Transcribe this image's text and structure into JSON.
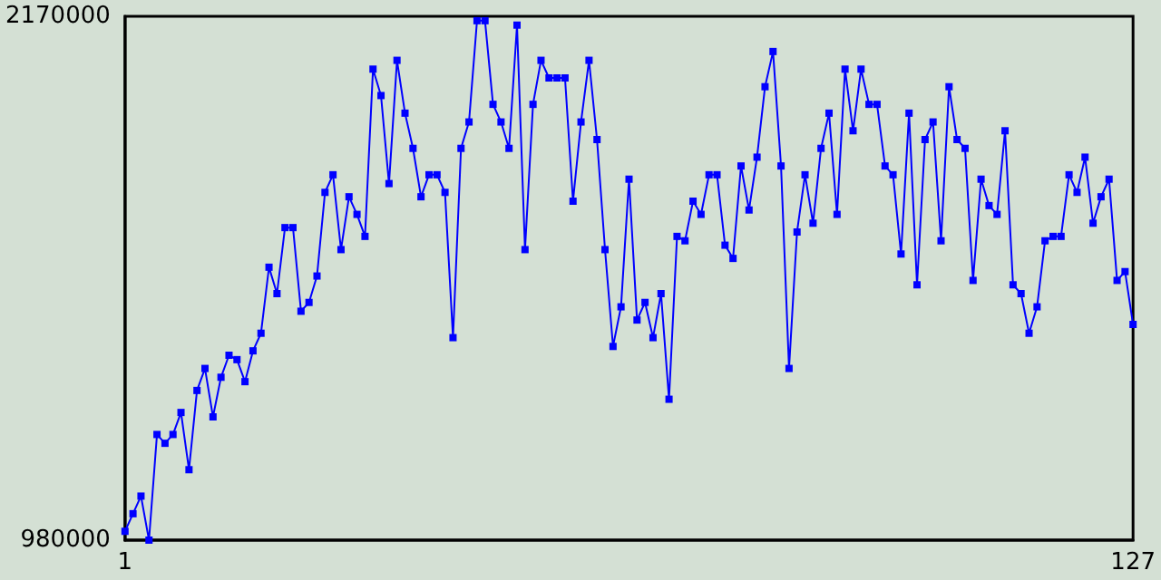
{
  "chart_data": {
    "type": "line",
    "marker": "square",
    "line_style": "solid",
    "xlim": [
      1,
      127
    ],
    "xticks": [
      1,
      127
    ],
    "ylim": [
      980000,
      2170000
    ],
    "yticks": [
      980000,
      2170000
    ],
    "x": [
      1,
      2,
      3,
      4,
      5,
      6,
      7,
      8,
      9,
      10,
      11,
      12,
      13,
      14,
      15,
      16,
      17,
      18,
      19,
      20,
      21,
      22,
      23,
      24,
      25,
      26,
      27,
      28,
      29,
      30,
      31,
      32,
      33,
      34,
      35,
      36,
      37,
      38,
      39,
      40,
      41,
      42,
      43,
      44,
      45,
      46,
      47,
      48,
      49,
      50,
      51,
      52,
      53,
      54,
      55,
      56,
      57,
      58,
      59,
      60,
      61,
      62,
      63,
      64,
      65,
      66,
      67,
      68,
      69,
      70,
      71,
      72,
      73,
      74,
      75,
      76,
      77,
      78,
      79,
      80,
      81,
      82,
      83,
      84,
      85,
      86,
      87,
      88,
      89,
      90,
      91,
      92,
      93,
      94,
      95,
      96,
      97,
      98,
      99,
      100,
      101,
      102,
      103,
      104,
      105,
      106,
      107,
      108,
      109,
      110,
      111,
      112,
      113,
      114,
      115,
      116,
      117,
      118,
      119,
      120,
      121,
      122,
      123,
      124,
      125,
      126,
      127
    ],
    "series": [
      {
        "color": "#0000ff",
        "values": [
          1000000,
          1040000,
          1080000,
          980000,
          1220000,
          1200000,
          1220000,
          1270000,
          1140000,
          1320000,
          1370000,
          1260000,
          1350000,
          1400000,
          1390000,
          1340000,
          1410000,
          1450000,
          1600000,
          1540000,
          1690000,
          1690000,
          1500000,
          1520000,
          1580000,
          1770000,
          1810000,
          1640000,
          1760000,
          1720000,
          1670000,
          2050000,
          1990000,
          1790000,
          2070000,
          1950000,
          1870000,
          1760000,
          1810000,
          1810000,
          1770000,
          1440000,
          1870000,
          1930000,
          2160000,
          2160000,
          1970000,
          1930000,
          1870000,
          2150000,
          1640000,
          1970000,
          2070000,
          2030000,
          2030000,
          2030000,
          1750000,
          1930000,
          2070000,
          1890000,
          1640000,
          1420000,
          1510000,
          1800000,
          1480000,
          1520000,
          1440000,
          1540000,
          1300000,
          1670000,
          1660000,
          1750000,
          1720000,
          1810000,
          1810000,
          1650000,
          1620000,
          1830000,
          1730000,
          1850000,
          2010000,
          2090000,
          1830000,
          1370000,
          1680000,
          1810000,
          1700000,
          1870000,
          1950000,
          1720000,
          2050000,
          1910000,
          2050000,
          1970000,
          1970000,
          1830000,
          1810000,
          1630000,
          1950000,
          1560000,
          1890000,
          1930000,
          1660000,
          2010000,
          1890000,
          1870000,
          1570000,
          1800000,
          1740000,
          1720000,
          1910000,
          1560000,
          1540000,
          1450000,
          1510000,
          1660000,
          1670000,
          1670000,
          1810000,
          1770000,
          1850000,
          1700000,
          1760000,
          1800000,
          1570000,
          1590000,
          1470000
        ]
      }
    ]
  }
}
